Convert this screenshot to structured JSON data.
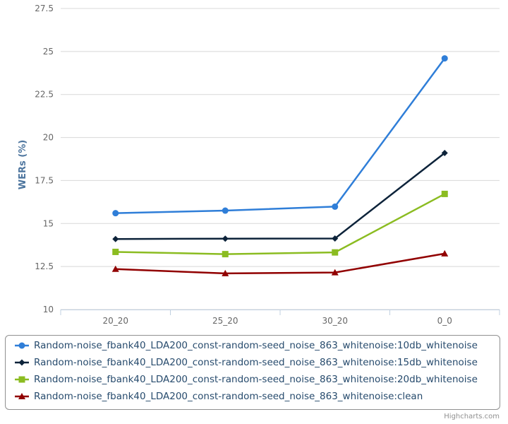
{
  "chart_data": {
    "type": "line",
    "title": "",
    "xlabel": "",
    "ylabel": "WERs (%)",
    "categories": [
      "20_20",
      "25_20",
      "30_20",
      "0_0"
    ],
    "ylim": [
      10,
      27.5
    ],
    "yticks": [
      "10",
      "12.5",
      "15",
      "17.5",
      "20",
      "22.5",
      "25",
      "27.5"
    ],
    "grid": true,
    "legend_position": "bottom",
    "series": [
      {
        "name": "Random-noise_fbank40_LDA200_const-random-seed_noise_863_whitenoise:10db_whitenoise",
        "values": [
          15.6,
          15.75,
          15.98,
          24.6
        ],
        "color": "#2f7ed8",
        "marker": "circle"
      },
      {
        "name": "Random-noise_fbank40_LDA200_const-random-seed_noise_863_whitenoise:15db_whitenoise",
        "values": [
          14.1,
          14.12,
          14.13,
          19.1
        ],
        "color": "#0d233a",
        "marker": "diamond"
      },
      {
        "name": "Random-noise_fbank40_LDA200_const-random-seed_noise_863_whitenoise:20db_whitenoise",
        "values": [
          13.35,
          13.22,
          13.32,
          16.72
        ],
        "color": "#8bbc21",
        "marker": "square"
      },
      {
        "name": "Random-noise_fbank40_LDA200_const-random-seed_noise_863_whitenoise:clean",
        "values": [
          12.35,
          12.1,
          12.15,
          13.25
        ],
        "color": "#910000",
        "marker": "triangle"
      }
    ]
  },
  "credits": "Highcharts.com"
}
